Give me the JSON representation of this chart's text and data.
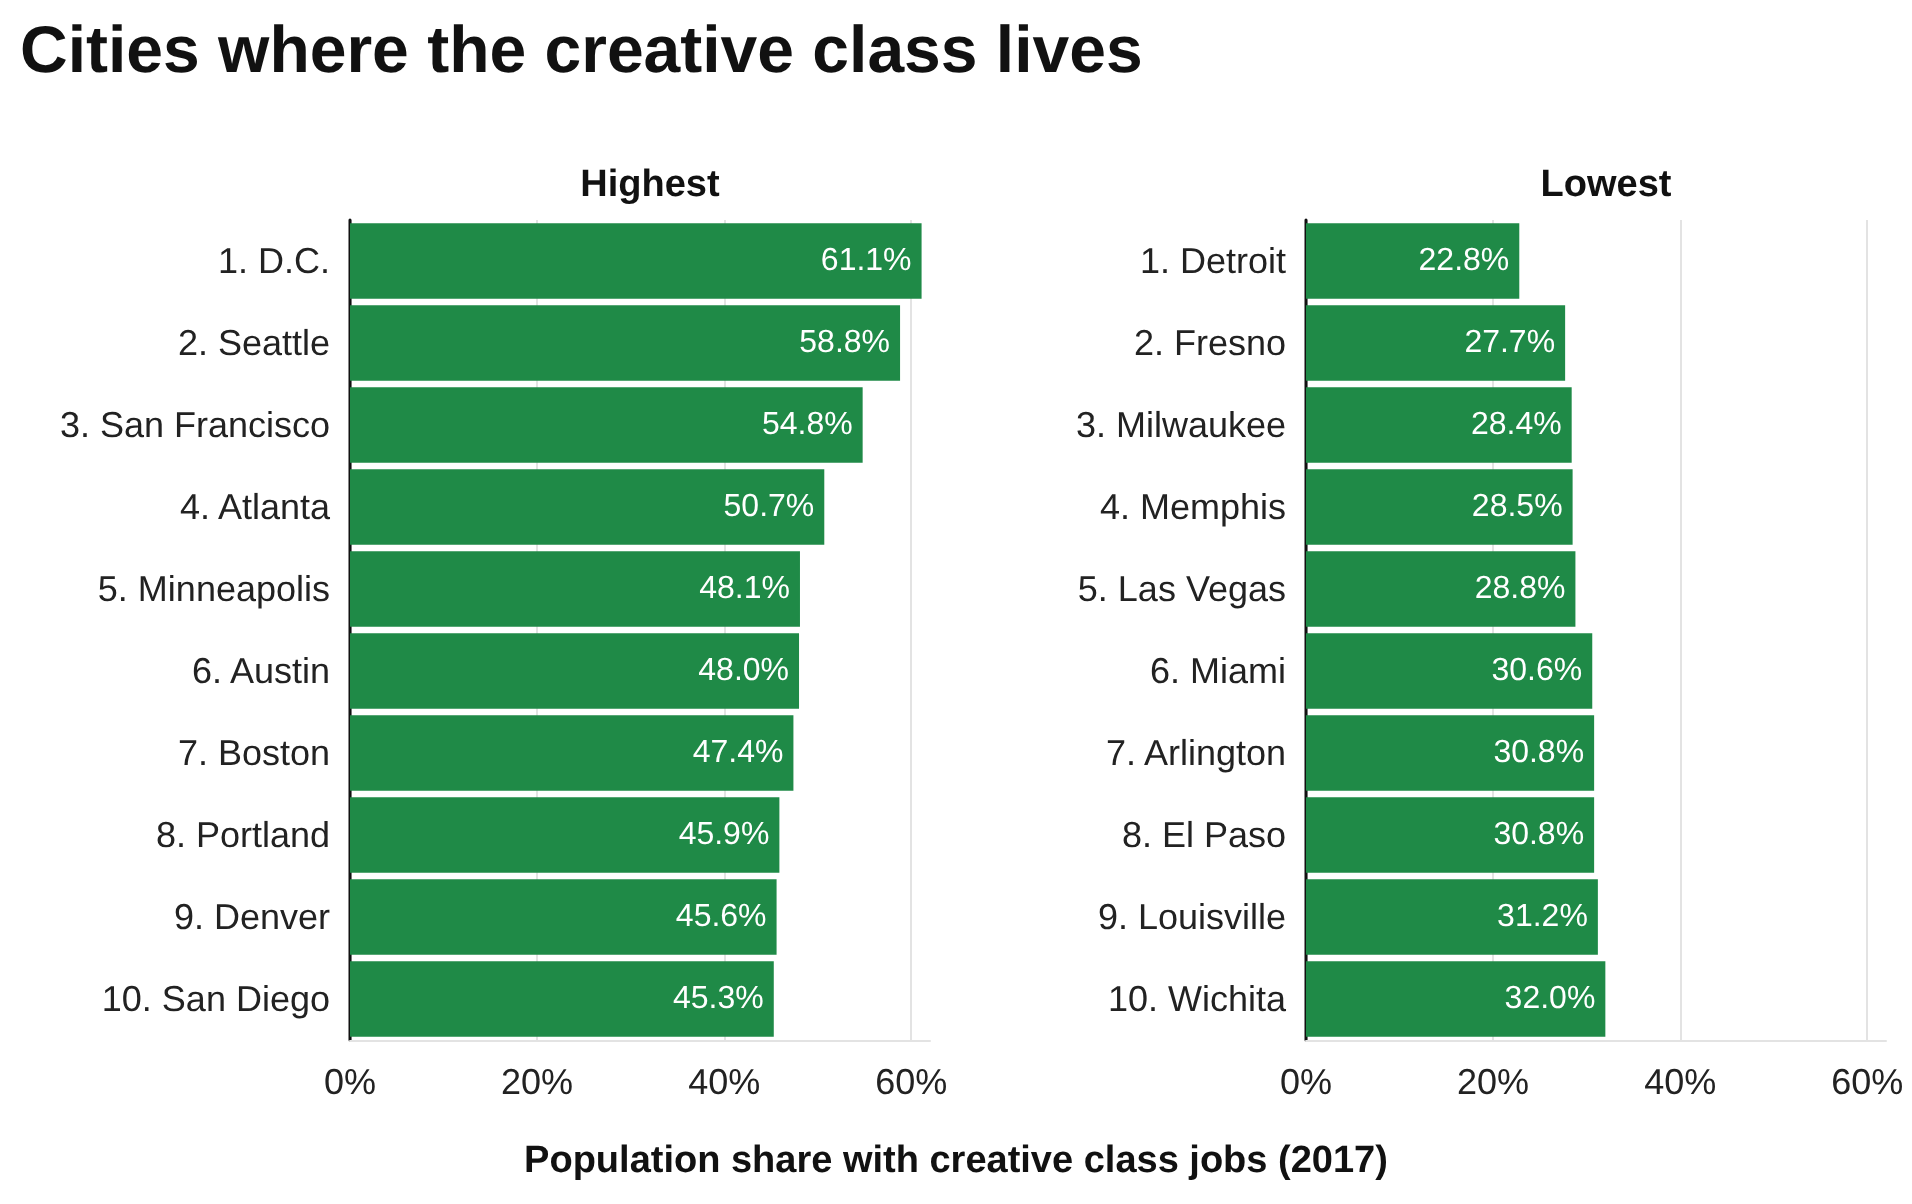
{
  "chart_data": [
    {
      "type": "bar",
      "orientation": "horizontal",
      "title": "Cities where the creative class lives",
      "subtitle": "Highest",
      "categories": [
        "1. D.C.",
        "2. Seattle",
        "3. San Francisco",
        "4. Atlanta",
        "5. Minneapolis",
        "6. Austin",
        "7. Boston",
        "8. Portland",
        "9. Denver",
        "10. San Diego"
      ],
      "values": [
        61.1,
        58.8,
        54.8,
        50.7,
        48.1,
        48.0,
        47.4,
        45.9,
        45.6,
        45.3
      ],
      "value_labels": [
        "61.1%",
        "58.8%",
        "54.8%",
        "50.7%",
        "48.1%",
        "48.0%",
        "47.4%",
        "45.9%",
        "45.6%",
        "45.3%"
      ],
      "color": "#1f8a47",
      "xlim": [
        0,
        62
      ],
      "xticks": [
        {
          "value": 0,
          "label": "0%"
        },
        {
          "value": 20,
          "label": "20%"
        },
        {
          "value": 40,
          "label": "40%"
        },
        {
          "value": 60,
          "label": "60%"
        }
      ],
      "grid": "x"
    },
    {
      "type": "bar",
      "orientation": "horizontal",
      "subtitle": "Lowest",
      "xlabel": "Population share with creative class jobs (2017)",
      "categories": [
        "1. Detroit",
        "2. Fresno",
        "3. Milwaukee",
        "4. Memphis",
        "5. Las Vegas",
        "6. Miami",
        "7. Arlington",
        "8. El Paso",
        "9. Louisville",
        "10. Wichita"
      ],
      "values": [
        22.8,
        27.7,
        28.4,
        28.5,
        28.8,
        30.6,
        30.8,
        30.8,
        31.2,
        32.0
      ],
      "value_labels": [
        "22.8%",
        "27.7%",
        "28.4%",
        "28.5%",
        "28.8%",
        "30.6%",
        "30.8%",
        "30.8%",
        "31.2%",
        "32.0%"
      ],
      "color": "#1f8a47",
      "xlim": [
        0,
        62
      ],
      "xticks": [
        {
          "value": 0,
          "label": "0%"
        },
        {
          "value": 20,
          "label": "20%"
        },
        {
          "value": 40,
          "label": "40%"
        },
        {
          "value": 60,
          "label": "60%"
        }
      ],
      "grid": "x"
    }
  ]
}
